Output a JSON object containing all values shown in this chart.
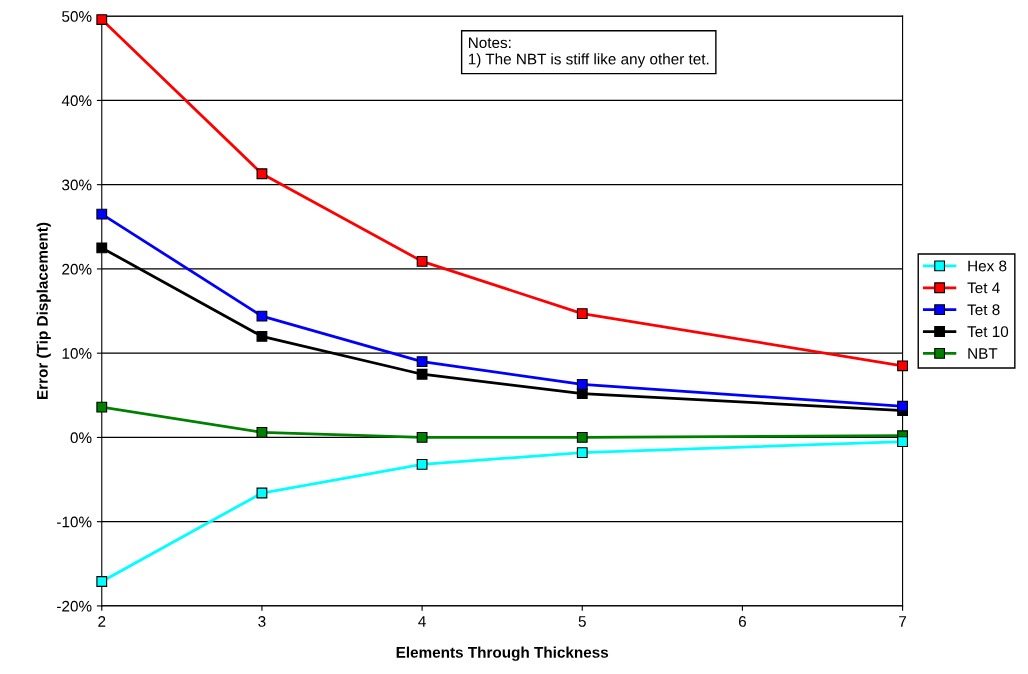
{
  "chart_data": {
    "type": "line",
    "xlabel": "Elements Through Thickness",
    "ylabel": "Error (Tip Displacement)",
    "x": [
      2,
      3,
      4,
      5,
      7
    ],
    "series": [
      {
        "name": "Hex 8",
        "color": "#00ffff",
        "values": [
          -17.1,
          -6.6,
          -3.2,
          -1.8,
          -0.5
        ]
      },
      {
        "name": "Tet 4",
        "color": "#ff0000",
        "values": [
          49.6,
          31.3,
          20.9,
          14.7,
          8.5
        ]
      },
      {
        "name": "Tet 8",
        "color": "#0000ff",
        "values": [
          26.5,
          14.4,
          9.0,
          6.3,
          3.7
        ]
      },
      {
        "name": "Tet 10",
        "color": "#000000",
        "values": [
          22.5,
          12.0,
          7.5,
          5.2,
          3.2
        ]
      },
      {
        "name": "NBT",
        "color": "#008000",
        "values": [
          3.6,
          0.6,
          0,
          0,
          0.2
        ]
      }
    ],
    "xlim": [
      2,
      7
    ],
    "xticks": [
      2,
      3,
      4,
      5,
      6,
      7
    ],
    "ylim": [
      -20,
      50
    ],
    "yticks": [
      {
        "value": -20,
        "label": "-20%"
      },
      {
        "value": -10,
        "label": "-10%"
      },
      {
        "value": 0,
        "label": "0%"
      },
      {
        "value": 10,
        "label": "10%"
      },
      {
        "value": 20,
        "label": "20%"
      },
      {
        "value": 30,
        "label": "30%"
      },
      {
        "value": 40,
        "label": "40%"
      },
      {
        "value": 50,
        "label": "50%"
      }
    ],
    "grid": "y",
    "legend": "right",
    "marker": "square",
    "line_style": "solid",
    "annotations": [
      "Notes:\n1) The NBT is stiff like any other tet."
    ]
  }
}
